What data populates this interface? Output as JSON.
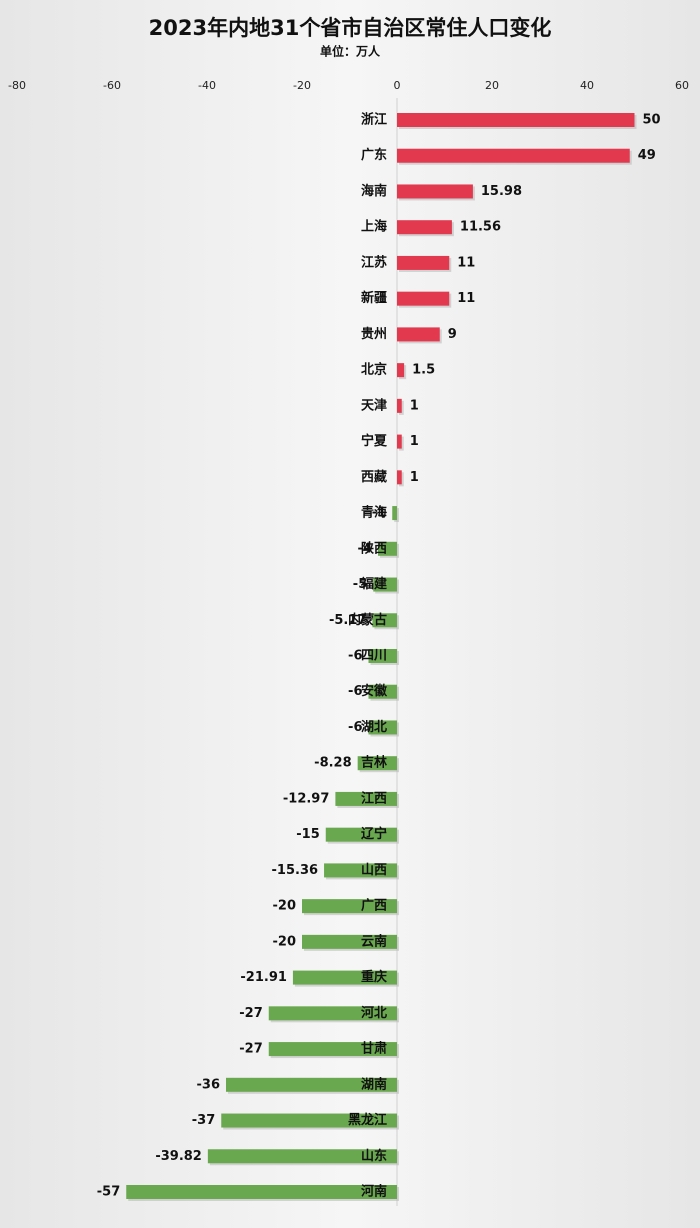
{
  "chart_data": {
    "type": "hbar",
    "title": "2023年内地31个省市自治区常住人口变化",
    "subtitle": "单位：万人",
    "categories": [
      "浙江",
      "广东",
      "海南",
      "上海",
      "江苏",
      "新疆",
      "贵州",
      "北京",
      "天津",
      "宁夏",
      "西藏",
      "青海",
      "陕西",
      "福建",
      "内蒙古",
      "四川",
      "安徽",
      "湖北",
      "吉林",
      "江西",
      "辽宁",
      "山西",
      "广西",
      "云南",
      "重庆",
      "河北",
      "甘肃",
      "湖南",
      "黑龙江",
      "山东",
      "河南"
    ],
    "values": [
      50,
      49,
      15.98,
      11.56,
      11,
      11,
      9,
      1.5,
      1,
      1,
      1,
      -1,
      -4,
      -5,
      -5.17,
      -6,
      -6,
      -6,
      -8.28,
      -12.97,
      -15,
      -15.36,
      -20,
      -20,
      -21.91,
      -27,
      -27,
      -36,
      -37,
      -39.82,
      -57
    ],
    "color_positive": "#e2394f",
    "color_negative": "#6aa84f",
    "xlim": [
      -80,
      60
    ],
    "xticks": [
      -80,
      -60,
      -40,
      -20,
      0,
      20,
      40,
      60
    ]
  }
}
